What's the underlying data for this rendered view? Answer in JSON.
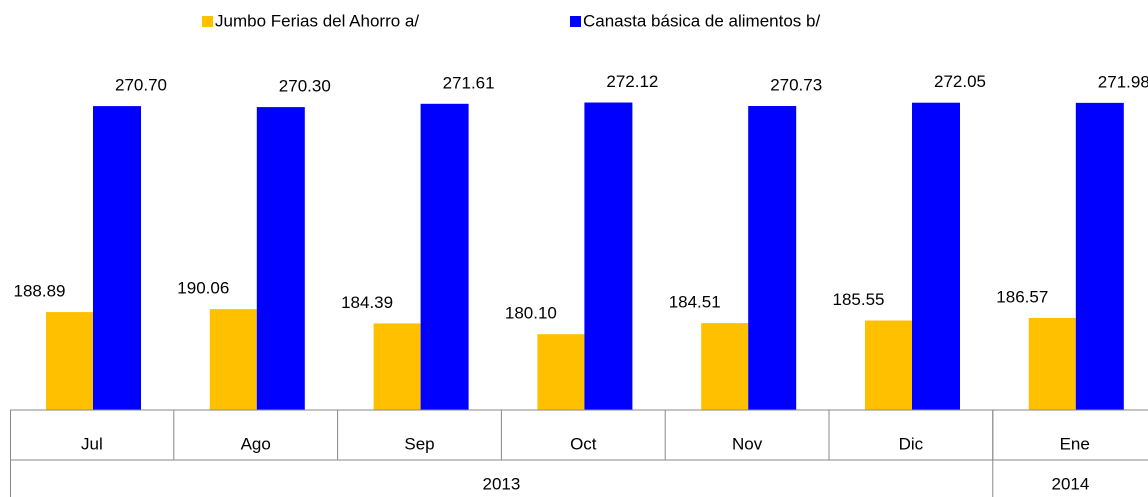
{
  "chart_data": {
    "type": "bar",
    "categories": [
      "Jul",
      "Ago",
      "Sep",
      "Oct",
      "Nov",
      "Dic",
      "Ene"
    ],
    "groups": [
      {
        "label": "2013",
        "span": 6
      },
      {
        "label": "2014",
        "span": 1
      }
    ],
    "series": [
      {
        "name": "Jumbo Ferias del Ahorro a/",
        "color": "#ffc000",
        "values": [
          188.89,
          190.06,
          184.39,
          180.1,
          184.51,
          185.55,
          186.57
        ],
        "value_labels": [
          "188.89",
          "190.06",
          "184.39",
          "180.10",
          "184.51",
          "185.55",
          "186.57"
        ]
      },
      {
        "name": "Canasta básica de alimentos b/",
        "color": "#0000ff",
        "values": [
          270.7,
          270.3,
          271.61,
          272.12,
          270.73,
          272.05,
          271.98
        ],
        "value_labels": [
          "270.70",
          "270.30",
          "271.61",
          "272.12",
          "270.73",
          "272.05",
          "271.98"
        ]
      }
    ],
    "ylim": [
      150,
      290
    ]
  }
}
